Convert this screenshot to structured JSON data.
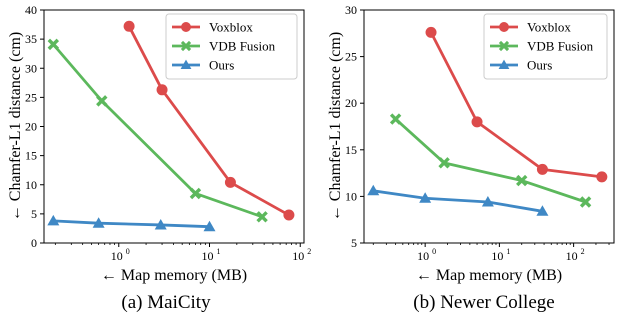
{
  "chart_data": [
    {
      "type": "line",
      "x_scale": "log",
      "xlabel": "← Map memory (MB)",
      "ylabel": "← Chamfer-L1 distance (cm)",
      "xlim": [
        0.15,
        110
      ],
      "ylim": [
        0,
        40
      ],
      "y_ticks": [
        0,
        5,
        10,
        15,
        20,
        25,
        30,
        35,
        40
      ],
      "x_ticks": [
        {
          "value": 1,
          "label": "10",
          "exp": "0"
        },
        {
          "value": 10,
          "label": "10",
          "exp": "1"
        },
        {
          "value": 100,
          "label": "10",
          "exp": "2"
        }
      ],
      "caption": "(a)  MaiCity",
      "grid": false,
      "legend_position": "top-right",
      "series": [
        {
          "name": "Voxblox",
          "marker": "circle",
          "color": "#dc4b4b",
          "x": [
            1.3,
            3.0,
            17.0,
            75.0
          ],
          "y": [
            37.2,
            26.3,
            10.4,
            4.8
          ]
        },
        {
          "name": "VDB Fusion",
          "marker": "x",
          "color": "#5cb85c",
          "x": [
            0.19,
            0.65,
            7.0,
            38.0
          ],
          "y": [
            34.1,
            24.4,
            8.5,
            4.5
          ]
        },
        {
          "name": "Ours",
          "marker": "triangle",
          "color": "#3f88c5",
          "x": [
            0.19,
            0.6,
            2.9,
            10.0
          ],
          "y": [
            3.8,
            3.4,
            3.1,
            2.8
          ]
        }
      ]
    },
    {
      "type": "line",
      "x_scale": "log",
      "xlabel": "← Map memory (MB)",
      "ylabel": "← Chamfer-L1 distance (cm)",
      "xlim": [
        0.15,
        350
      ],
      "ylim": [
        5,
        30
      ],
      "y_ticks": [
        5,
        10,
        15,
        20,
        25,
        30
      ],
      "x_ticks": [
        {
          "value": 1,
          "label": "10",
          "exp": "0"
        },
        {
          "value": 10,
          "label": "10",
          "exp": "1"
        },
        {
          "value": 100,
          "label": "10",
          "exp": "2"
        }
      ],
      "caption": "(b)  Newer College",
      "grid": false,
      "legend_position": "top-right",
      "series": [
        {
          "name": "Voxblox",
          "marker": "circle",
          "color": "#dc4b4b",
          "x": [
            1.2,
            5.0,
            38.0,
            240.0
          ],
          "y": [
            27.6,
            18.0,
            12.9,
            12.1
          ]
        },
        {
          "name": "VDB Fusion",
          "marker": "x",
          "color": "#5cb85c",
          "x": [
            0.4,
            1.8,
            20.0,
            145.0
          ],
          "y": [
            18.3,
            13.6,
            11.7,
            9.4
          ]
        },
        {
          "name": "Ours",
          "marker": "triangle",
          "color": "#3f88c5",
          "x": [
            0.2,
            1.0,
            7.0,
            38.0
          ],
          "y": [
            10.6,
            9.8,
            9.4,
            8.4
          ]
        }
      ]
    }
  ]
}
